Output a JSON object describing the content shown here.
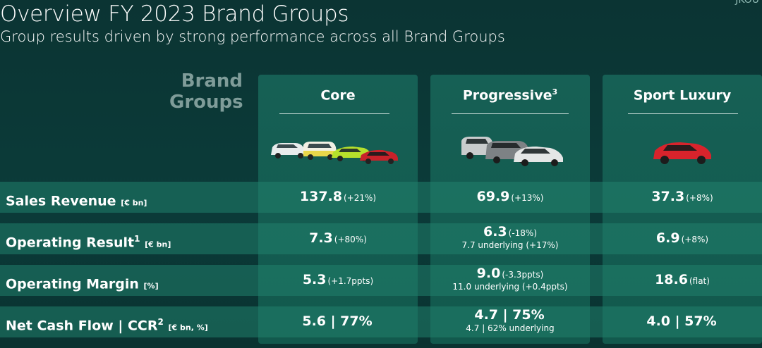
{
  "header": {
    "title": "Overview FY 2023 Brand Groups",
    "subtitle": "Group results driven by strong performance across all Brand Groups",
    "corner_text": "JKOU"
  },
  "brand_groups_label": [
    "Brand",
    "Groups"
  ],
  "columns": [
    {
      "name": "Core",
      "footnote": ""
    },
    {
      "name": "Progressive",
      "footnote": "3"
    },
    {
      "name": "Sport Luxury",
      "footnote": ""
    }
  ],
  "rows": [
    {
      "label": "Sales Revenue",
      "footnote": "",
      "unit": "[€ bn]",
      "cells": [
        {
          "value": "137.8",
          "change": "(+21%)",
          "note": ""
        },
        {
          "value": "69.9",
          "change": "(+13%)",
          "note": ""
        },
        {
          "value": "37.3",
          "change": "(+8%)",
          "note": ""
        }
      ]
    },
    {
      "label": "Operating Result",
      "footnote": "1",
      "unit": "[€ bn]",
      "cells": [
        {
          "value": "7.3",
          "change": "(+80%)",
          "note": ""
        },
        {
          "value": "6.3",
          "change": "(-18%)",
          "note": "7.7 underlying (+17%)"
        },
        {
          "value": "6.9",
          "change": "(+8%)",
          "note": ""
        }
      ]
    },
    {
      "label": "Operating Margin",
      "footnote": "",
      "unit": "[%]",
      "cells": [
        {
          "value": "5.3",
          "change": "(+1.7ppts)",
          "note": ""
        },
        {
          "value": "9.0",
          "change": "(-3.3ppts)",
          "note": "11.0 underlying (+0.4ppts)"
        },
        {
          "value": "18.6",
          "change": "(flat)",
          "note": ""
        }
      ]
    },
    {
      "label": "Net Cash Flow | CCR",
      "footnote": "2",
      "unit": "[€ bn, %]",
      "cells": [
        {
          "value": "5.6 | 77%",
          "change": "",
          "note": ""
        },
        {
          "value": "4.7 | 75%",
          "change": "",
          "note": "4.7 | 62% underlying"
        },
        {
          "value": "4.0 | 57%",
          "change": "",
          "note": ""
        }
      ]
    }
  ],
  "colors": {
    "background": "#0b3433",
    "column": "#166055",
    "row_band": "#20806c",
    "muted_label": "#7f9c99"
  }
}
